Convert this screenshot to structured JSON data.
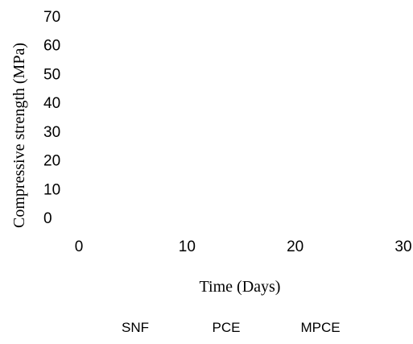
{
  "chart_data": {
    "type": "line",
    "title": "",
    "xlabel": "Time (Days)",
    "ylabel": "Compressive strength (MPa)",
    "xlim": [
      0,
      30
    ],
    "ylim": [
      0,
      70
    ],
    "x_ticks": [
      0,
      10,
      20,
      30
    ],
    "y_ticks": [
      0,
      10,
      20,
      30,
      40,
      50,
      60,
      70
    ],
    "x_tick_labels": [
      "0",
      "10",
      "20",
      "30"
    ],
    "y_tick_labels": [
      "0",
      "10",
      "20",
      "30",
      "40",
      "50",
      "60",
      "70"
    ],
    "grid": false,
    "legend_position": "bottom",
    "series": [
      {
        "name": "SNF",
        "values": []
      },
      {
        "name": "PCE",
        "values": []
      },
      {
        "name": "MPCE",
        "values": []
      }
    ]
  }
}
